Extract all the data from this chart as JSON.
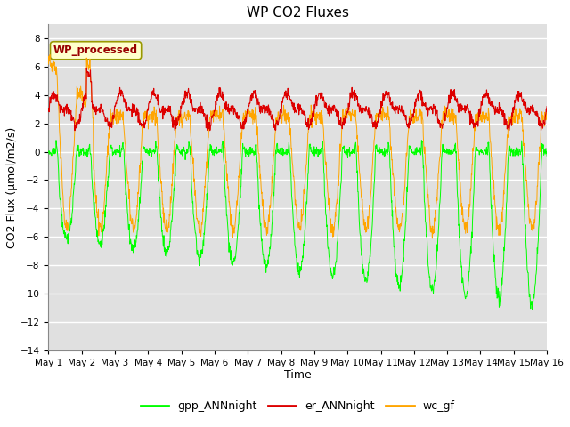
{
  "title": "WP CO2 Fluxes",
  "xlabel": "Time",
  "ylabel": "CO2 Flux (μmol/m2/s)",
  "ylim": [
    -14,
    9
  ],
  "yticks": [
    -14,
    -12,
    -10,
    -8,
    -6,
    -4,
    -2,
    0,
    2,
    4,
    6,
    8
  ],
  "xstart": 0,
  "xend": 15,
  "n_points": 1440,
  "bg_color": "#e0e0e0",
  "fig_bg": "#ffffff",
  "line_colors": {
    "gpp": "#00ff00",
    "er": "#dd0000",
    "wc": "#ffa500"
  },
  "legend_labels": [
    "gpp_ANNnight",
    "er_ANNnight",
    "wc_gf"
  ],
  "annotation_text": "WP_processed",
  "annotation_color": "#990000",
  "annotation_bg": "#ffffcc",
  "annotation_edge": "#999900",
  "date_labels": [
    "May 1",
    "May 2",
    "May 3",
    "May 4",
    "May 5",
    "May 6",
    "May 7",
    "May 8",
    "May 9",
    "May 10",
    "May 11",
    "May 12",
    "May 13",
    "May 14",
    "May 15",
    "May 16"
  ],
  "title_fontsize": 11,
  "axis_label_fontsize": 9,
  "tick_fontsize": 7.5,
  "legend_fontsize": 9
}
